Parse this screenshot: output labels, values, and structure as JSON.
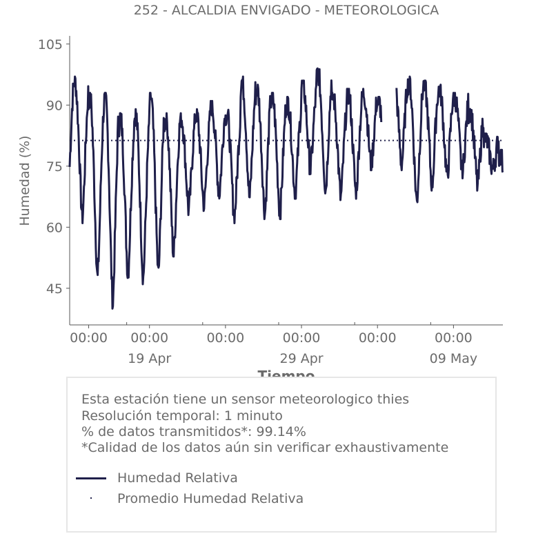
{
  "chart_data": {
    "type": "line",
    "title": "252 - ALCALDIA ENVIGADO - METEOROLOGICA",
    "xlabel": "Tiempo",
    "ylabel": "Humedad (%)",
    "ylim": [
      36,
      107
    ],
    "yticks": [
      45,
      60,
      75,
      90,
      105
    ],
    "x_range_days": [
      "2023-04-13T18:00",
      "2023-05-12T06:00"
    ],
    "x_major_ticks": [
      {
        "time": "2023-04-15T00:00",
        "label": "00:00",
        "sublabel": ""
      },
      {
        "time": "2023-04-19T00:00",
        "label": "00:00",
        "sublabel": "19 Apr"
      },
      {
        "time": "2023-04-24T00:00",
        "label": "00:00",
        "sublabel": ""
      },
      {
        "time": "2023-04-29T00:00",
        "label": "00:00",
        "sublabel": "29 Apr"
      },
      {
        "time": "2023-05-04T00:00",
        "label": "00:00",
        "sublabel": ""
      },
      {
        "time": "2023-05-09T00:00",
        "label": "00:00",
        "sublabel": "09 May"
      }
    ],
    "grid": false,
    "legend_position": "below",
    "series": [
      {
        "name": "Humedad Relativa",
        "style": "solid",
        "color": "#1f1f4a",
        "daily_min": [
          62,
          47,
          41,
          48,
          47,
          48,
          53,
          64,
          65,
          68,
          62,
          67,
          63,
          63,
          68,
          74,
          69,
          67,
          68,
          75,
          70,
          75,
          66,
          70,
          72,
          73,
          70,
          74,
          60
        ],
        "daily_max": [
          96,
          92,
          92,
          87,
          88,
          92,
          87,
          87,
          88,
          90,
          88,
          96,
          94,
          92,
          91,
          95,
          98,
          92,
          93,
          93,
          91,
          97,
          96,
          95,
          94,
          92,
          89,
          82,
          78
        ],
        "gap": [
          "2023-05-04T06:00",
          "2023-05-05T06:00"
        ]
      },
      {
        "name": "Promedio Humedad Relativa",
        "style": "dotted",
        "color": "#1f1f4a",
        "value": 81.3
      }
    ]
  },
  "info": {
    "lines": [
      "Esta estación tiene un sensor meteorologico thies",
      "Resolución temporal: 1 minuto",
      "% de datos transmitidos*: 99.14%",
      "*Calidad de los datos aún sin verificar exhaustivamente"
    ],
    "legend": [
      {
        "label": "Humedad Relativa",
        "marker": "line"
      },
      {
        "label": "Promedio Humedad Relativa",
        "marker": "dot"
      }
    ]
  }
}
